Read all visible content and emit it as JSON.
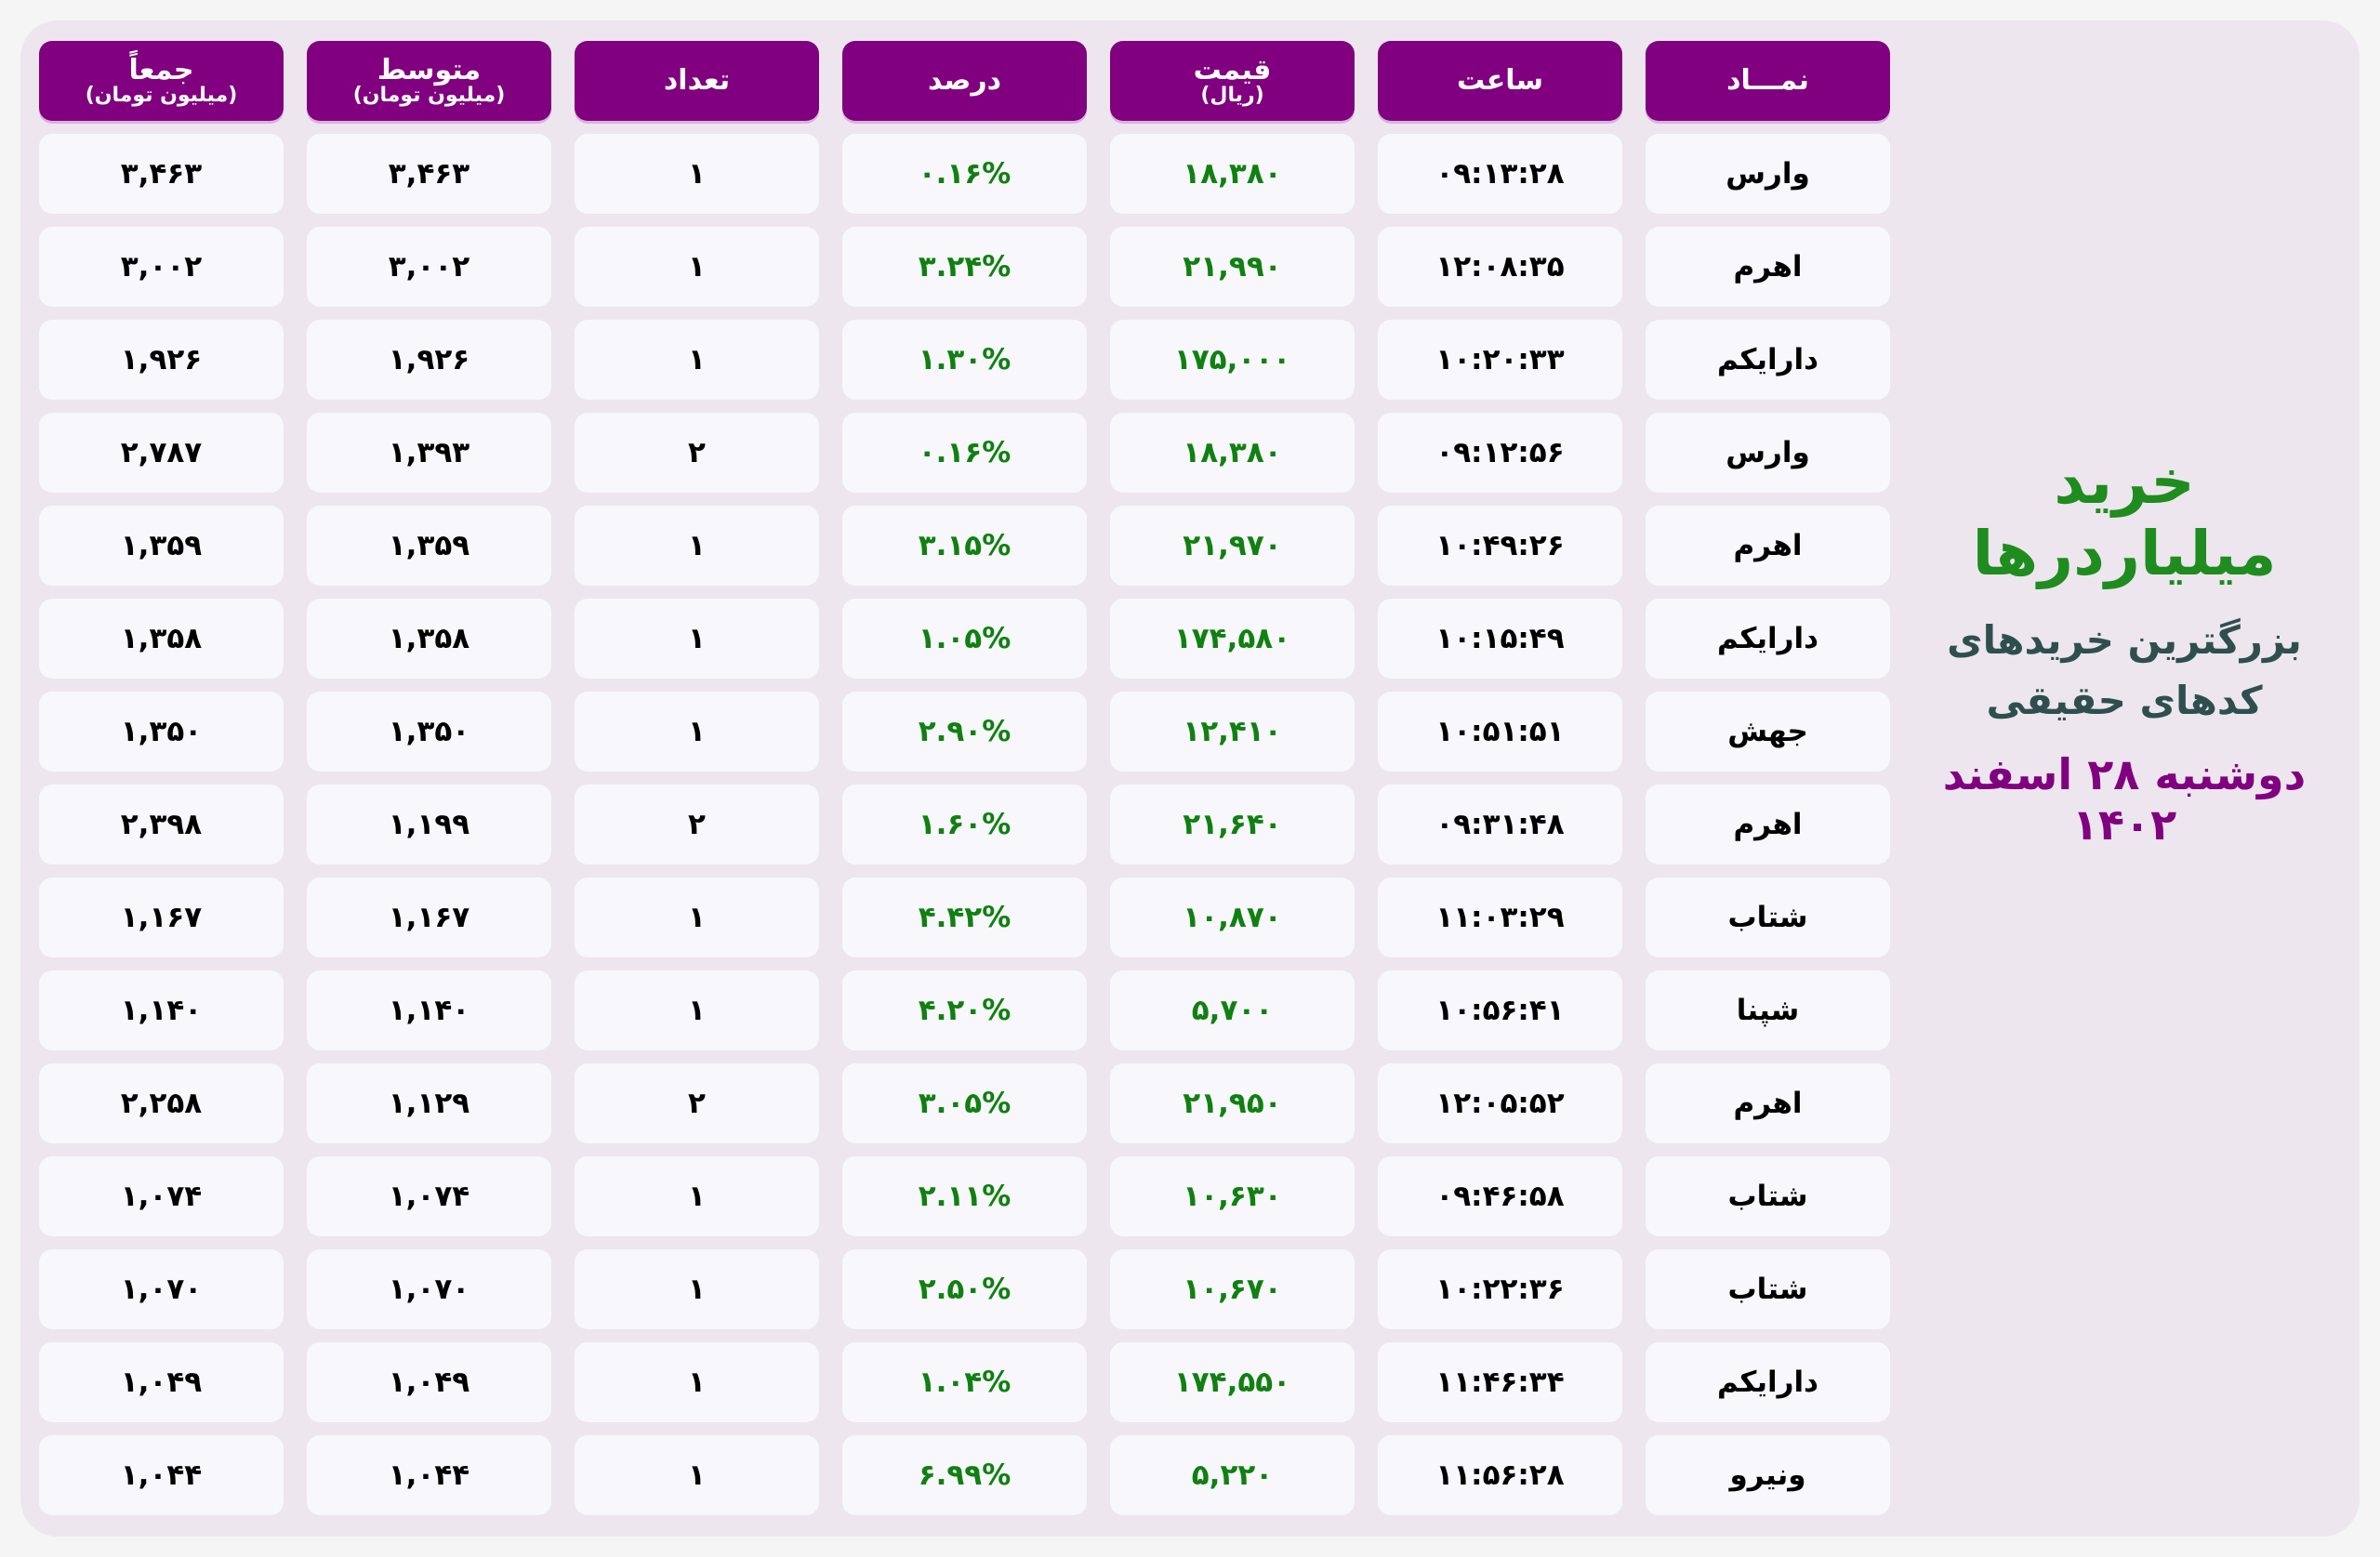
{
  "colors": {
    "header_bg": "#800080",
    "price_green": "#108010",
    "title_green": "#1e8c1e",
    "subtitle": "#2f4f4f",
    "date": "#800080"
  },
  "side": {
    "title": "خرید میلیاردرها",
    "subtitle_1": "بزرگترین خریدهای",
    "subtitle_2": "کدهای حقیقی",
    "date": "دوشنبه ۲۸ اسفند ۱۴۰۲"
  },
  "headers": [
    {
      "label": "نمـــاد",
      "sub": ""
    },
    {
      "label": "ساعت",
      "sub": ""
    },
    {
      "label": "قیمت",
      "sub": "(ریال)"
    },
    {
      "label": "درصد",
      "sub": ""
    },
    {
      "label": "تعداد",
      "sub": ""
    },
    {
      "label": "متوسط",
      "sub": "(میلیون تومان)"
    },
    {
      "label": "جمعاً",
      "sub": "(میلیون تومان)"
    }
  ],
  "rows": [
    [
      "وارس",
      "۰۹:۱۳:۲۸",
      "۱۸,۳۸۰",
      "۰.۱۶%",
      "۱",
      "۳,۴۶۳",
      "۳,۴۶۳"
    ],
    [
      "اهرم",
      "۱۲:۰۸:۳۵",
      "۲۱,۹۹۰",
      "۳.۲۴%",
      "۱",
      "۳,۰۰۲",
      "۳,۰۰۲"
    ],
    [
      "دارا‌یکم",
      "۱۰:۲۰:۳۳",
      "۱۷۵,۰۰۰",
      "۱.۳۰%",
      "۱",
      "۱,۹۲۶",
      "۱,۹۲۶"
    ],
    [
      "وارس",
      "۰۹:۱۲:۵۶",
      "۱۸,۳۸۰",
      "۰.۱۶%",
      "۲",
      "۱,۳۹۳",
      "۲,۷۸۷"
    ],
    [
      "اهرم",
      "۱۰:۴۹:۲۶",
      "۲۱,۹۷۰",
      "۳.۱۵%",
      "۱",
      "۱,۳۵۹",
      "۱,۳۵۹"
    ],
    [
      "دارا‌یکم",
      "۱۰:۱۵:۴۹",
      "۱۷۴,۵۸۰",
      "۱.۰۵%",
      "۱",
      "۱,۳۵۸",
      "۱,۳۵۸"
    ],
    [
      "جهش",
      "۱۰:۵۱:۵۱",
      "۱۲,۴۱۰",
      "۲.۹۰%",
      "۱",
      "۱,۳۵۰",
      "۱,۳۵۰"
    ],
    [
      "اهرم",
      "۰۹:۳۱:۴۸",
      "۲۱,۶۴۰",
      "۱.۶۰%",
      "۲",
      "۱,۱۹۹",
      "۲,۳۹۸"
    ],
    [
      "شتاب",
      "۱۱:۰۳:۲۹",
      "۱۰,۸۷۰",
      "۴.۴۲%",
      "۱",
      "۱,۱۶۷",
      "۱,۱۶۷"
    ],
    [
      "شپنا",
      "۱۰:۵۶:۴۱",
      "۵,۷۰۰",
      "۴.۲۰%",
      "۱",
      "۱,۱۴۰",
      "۱,۱۴۰"
    ],
    [
      "اهرم",
      "۱۲:۰۵:۵۲",
      "۲۱,۹۵۰",
      "۳.۰۵%",
      "۲",
      "۱,۱۲۹",
      "۲,۲۵۸"
    ],
    [
      "شتاب",
      "۰۹:۴۶:۵۸",
      "۱۰,۶۳۰",
      "۲.۱۱%",
      "۱",
      "۱,۰۷۴",
      "۱,۰۷۴"
    ],
    [
      "شتاب",
      "۱۰:۲۲:۳۶",
      "۱۰,۶۷۰",
      "۲.۵۰%",
      "۱",
      "۱,۰۷۰",
      "۱,۰۷۰"
    ],
    [
      "دارا‌یکم",
      "۱۱:۴۶:۳۴",
      "۱۷۴,۵۵۰",
      "۱.۰۴%",
      "۱",
      "۱,۰۴۹",
      "۱,۰۴۹"
    ],
    [
      "ونیرو",
      "۱۱:۵۶:۲۸",
      "۵,۲۲۰",
      "۶.۹۹%",
      "۱",
      "۱,۰۴۴",
      "۱,۰۴۴"
    ]
  ]
}
